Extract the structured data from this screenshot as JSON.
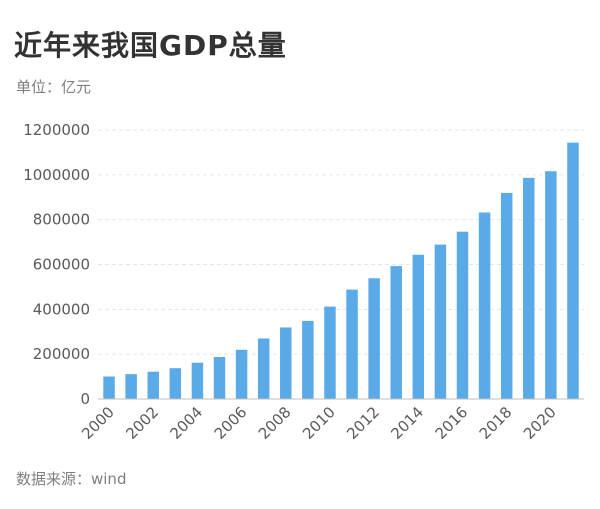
{
  "header": {
    "title": "近年来我国GDP总量",
    "unit": "单位：亿元"
  },
  "footer": {
    "source": "数据来源：wind"
  },
  "colors": {
    "bar": "#5aaae8",
    "grid": "#e6e6e6",
    "axis": "#bfbfbf"
  },
  "chart_data": {
    "type": "bar",
    "categories": [
      "2000",
      "2001",
      "2002",
      "2003",
      "2004",
      "2005",
      "2006",
      "2007",
      "2008",
      "2009",
      "2010",
      "2011",
      "2012",
      "2013",
      "2014",
      "2015",
      "2016",
      "2017",
      "2018",
      "2019",
      "2020",
      "2021"
    ],
    "values": [
      100280,
      110863,
      121717,
      137422,
      161840,
      187319,
      219439,
      270092,
      319245,
      348518,
      412119,
      487940,
      538580,
      592963,
      643563,
      688858,
      746395,
      832036,
      919281,
      986515,
      1015986,
      1143670
    ],
    "xtick_labels": [
      "2000",
      "2002",
      "2004",
      "2006",
      "2008",
      "2010",
      "2012",
      "2014",
      "2016",
      "2018",
      "2020"
    ],
    "yticks": [
      0,
      200000,
      400000,
      600000,
      800000,
      1000000,
      1200000
    ],
    "ylim": [
      0,
      1200000
    ],
    "grid": true,
    "title": "近年来我国GDP总量",
    "xlabel": "",
    "ylabel": ""
  }
}
